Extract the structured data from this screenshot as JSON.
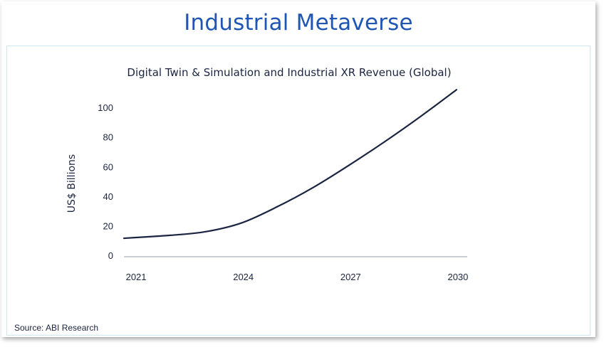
{
  "slide": {
    "title": "Industrial Metaverse",
    "source": "Source: ABI Research"
  },
  "colors": {
    "title": "#1f56b3",
    "line": "#1b2440",
    "axis": "#9aa0aa",
    "text": "#1b2440"
  },
  "chart_data": {
    "type": "line",
    "title": "Digital Twin & Simulation and Industrial XR Revenue (Global)",
    "xlabel": "",
    "ylabel": "US$ Billions",
    "x_ticks": [
      2021,
      2024,
      2027,
      2030
    ],
    "y_ticks": [
      0,
      20,
      40,
      60,
      80,
      100
    ],
    "xlim": [
      2020.7,
      2030.3
    ],
    "ylim": [
      0,
      115
    ],
    "grid": false,
    "legend": "none",
    "series": [
      {
        "x": [
          2020.7,
          2021,
          2022,
          2023,
          2024,
          2025,
          2026,
          2027,
          2028,
          2029,
          2030
        ],
        "values": [
          11.5,
          12,
          13.5,
          16,
          22,
          33,
          46,
          61,
          77,
          94,
          112
        ]
      }
    ]
  }
}
